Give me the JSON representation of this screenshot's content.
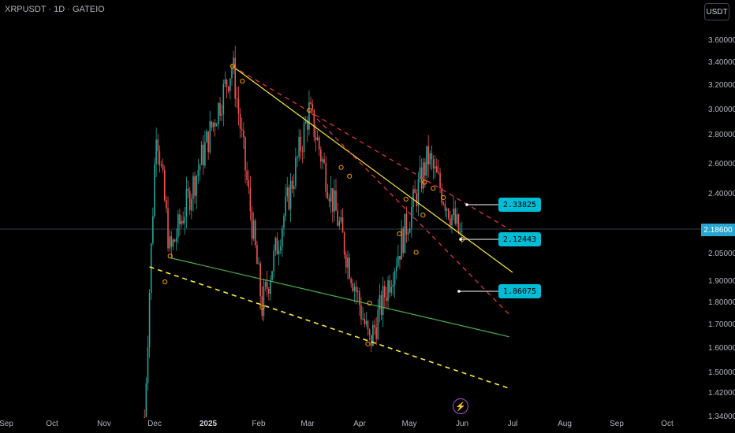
{
  "header": {
    "symbol_line": "XRPUSDT · 1D · GATEIO",
    "unit_button": "USDT"
  },
  "current_price": "2.18600",
  "levels": [
    "2.33825",
    "2.12443",
    "1.86075"
  ],
  "icons": {
    "event": "lightning-icon"
  },
  "chart_data": {
    "type": "candlestick",
    "title": "XRPUSDT · 1D · GATEIO",
    "y_ticks": [
      "3.60000",
      "3.40000",
      "3.20000",
      "3.00000",
      "2.80000",
      "2.60000",
      "2.40000",
      "2.05000",
      "1.90000",
      "1.80000",
      "1.70000",
      "1.60000",
      "1.50000",
      "1.42000",
      "1.34000"
    ],
    "x_ticks": [
      "Sep",
      "Oct",
      "Nov",
      "Dec",
      "2025",
      "Feb",
      "Mar",
      "Apr",
      "May",
      "Jun",
      "Jul",
      "Aug",
      "Sep",
      "Oct"
    ],
    "y_scale": "log",
    "colors": {
      "up": "#26a69a",
      "down": "#ef5350",
      "trendline": "#ffeb3b",
      "channel": "#f23645",
      "support": "#4caf50",
      "lower_channel": "#ffeb3b",
      "label": "#00bcd4",
      "price_line": "#26a6d1"
    },
    "anchor_points": [
      {
        "date": "Nov 25",
        "price": 1.34
      },
      {
        "date": "Dec 2",
        "price": 2.9
      },
      {
        "date": "Dec 10",
        "price": 2.05
      },
      {
        "date": "Jan 16",
        "price": 3.39
      },
      {
        "date": "Feb 3",
        "price": 1.78
      },
      {
        "date": "Mar 2",
        "price": 3.0
      },
      {
        "date": "Apr 7",
        "price": 1.62
      },
      {
        "date": "May 12",
        "price": 2.65
      },
      {
        "date": "Jun 1",
        "price": 2.12
      }
    ],
    "trendlines": [
      {
        "name": "",
        "style": "solid",
        "from": {
          "date": "Jan 16",
          "price": 3.37
        },
        "to": {
          "date": "Jul 1",
          "price": 1.95
        }
      },
      {
        "name": "",
        "style": "dashed",
        "from": {
          "date": "Jan 16",
          "price": 3.37
        },
        "to": {
          "date": "Jun 30",
          "price": 2.18
        }
      },
      {
        "name": "",
        "style": "dashed",
        "from": {
          "date": "Mar 3",
          "price": 2.98
        },
        "to": {
          "date": "Jun 30",
          "price": 1.74
        }
      },
      {
        "name": "",
        "style": "solid",
        "from": {
          "date": "Dec 10",
          "price": 2.03
        },
        "to": {
          "date": "Jun 29",
          "price": 1.65
        }
      },
      {
        "name": "",
        "style": "dashed",
        "from": {
          "date": "Nov 28",
          "price": 1.98
        },
        "to": {
          "date": "Jun 29",
          "price": 1.44
        }
      }
    ],
    "level_lines": [
      {
        "price": 2.33825,
        "label": "2.33825"
      },
      {
        "price": 2.12443,
        "label": "2.12443"
      },
      {
        "price": 1.86075,
        "label": "1.86075"
      }
    ],
    "last_price": 2.186
  }
}
